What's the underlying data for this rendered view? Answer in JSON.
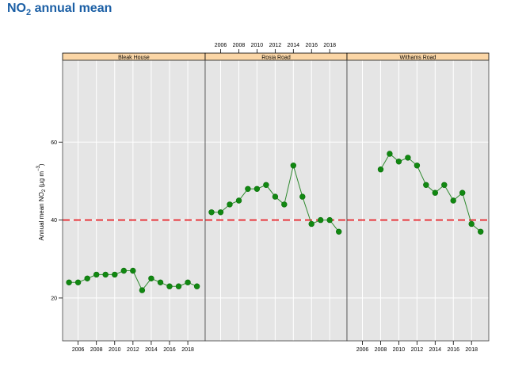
{
  "title": {
    "main": "NO",
    "sub": "2",
    "rest": " annual mean"
  },
  "chart_data": {
    "type": "line",
    "title": "NO2 annual mean",
    "ylabel": "Annual mean NO2 (µg m-3)",
    "ylabel_parts": {
      "a": "Annual mean NO",
      "sub": "2",
      "b": " (µg m",
      "sup": "−3",
      "c": ")"
    },
    "ylim": [
      9,
      81
    ],
    "xlim": [
      2004.3,
      2019.9
    ],
    "yticks": [
      20,
      40,
      60
    ],
    "xticks": [
      2006,
      2008,
      2010,
      2012,
      2014,
      2016,
      2018
    ],
    "x_axis_placement": "alternating top and bottom",
    "grid": true,
    "reference_line": {
      "value": 40,
      "color": "#e8141a",
      "style": "dashed"
    },
    "colors": {
      "line": "#2f8a2f",
      "marker": "#118811",
      "panel_bg": "#e5e5e5",
      "strip_bg": "#fbd6a6",
      "grid": "#ffffff"
    },
    "panels": [
      {
        "name": "Bleak House",
        "x": [
          2005,
          2006,
          2007,
          2008,
          2009,
          2010,
          2011,
          2012,
          2013,
          2014,
          2015,
          2016,
          2017,
          2018,
          2019
        ],
        "y": [
          24,
          24,
          25,
          26,
          26,
          26,
          27,
          27,
          22,
          25,
          24,
          23,
          23,
          24,
          23
        ]
      },
      {
        "name": "Rosia Road",
        "x": [
          2005,
          2006,
          2007,
          2008,
          2009,
          2010,
          2011,
          2012,
          2013,
          2014,
          2015,
          2016,
          2017,
          2018,
          2019
        ],
        "y": [
          42,
          42,
          44,
          45,
          48,
          48,
          49,
          46,
          44,
          54,
          46,
          39,
          40,
          40,
          37
        ]
      },
      {
        "name": "Withams Road",
        "x": [
          2008,
          2009,
          2010,
          2011,
          2012,
          2013,
          2014,
          2015,
          2016,
          2017,
          2018,
          2019
        ],
        "y": [
          53,
          57,
          55,
          56,
          54,
          49,
          47,
          49,
          45,
          47,
          39,
          37
        ]
      }
    ]
  }
}
